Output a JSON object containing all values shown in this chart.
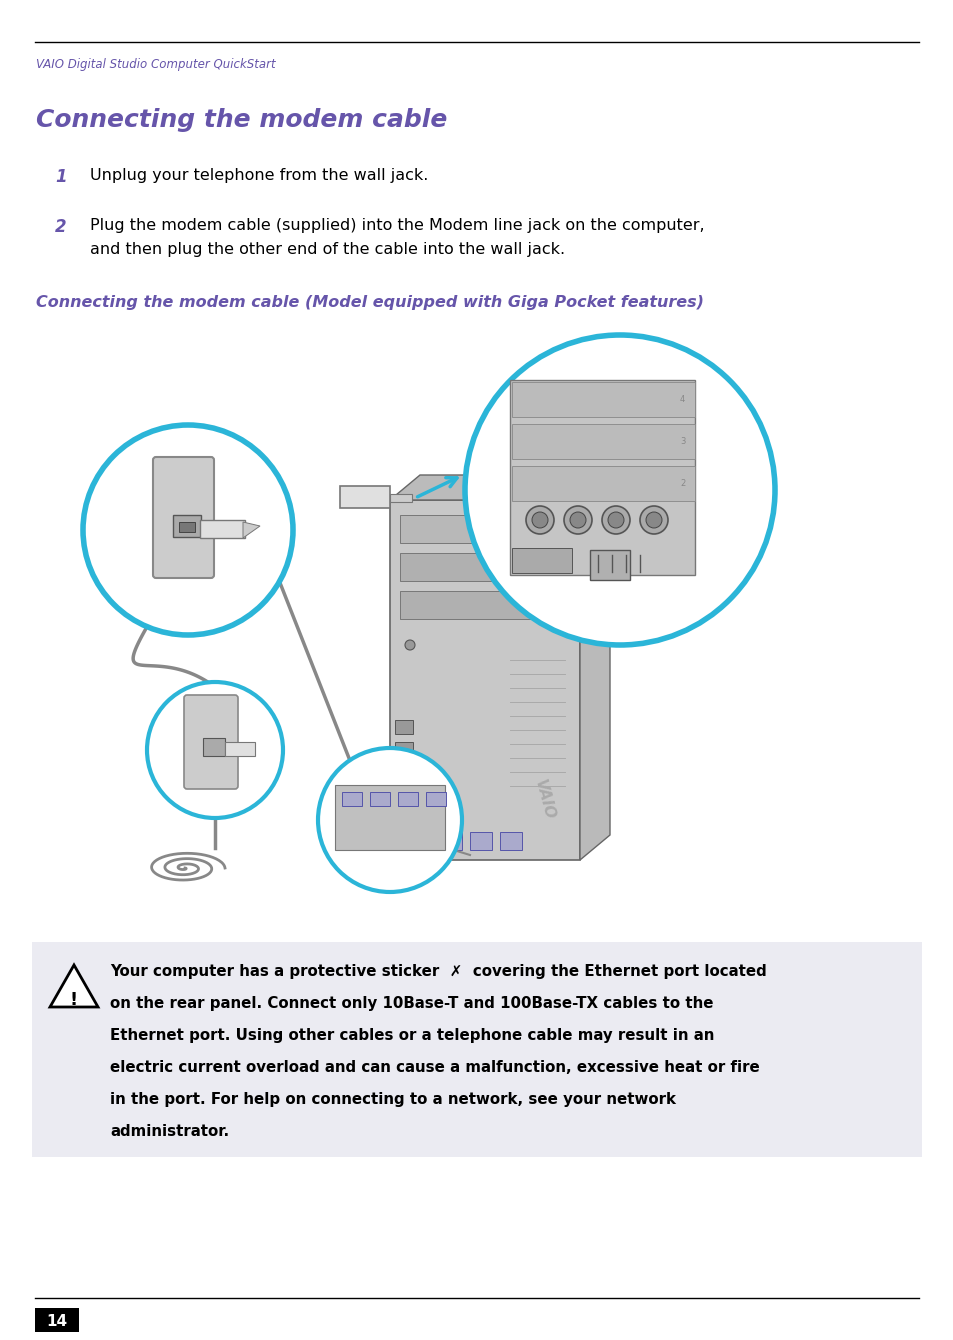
{
  "header_text": "VAIO Digital Studio Computer QuickStart",
  "header_color": "#6655AA",
  "title": "Connecting the modem cable",
  "title_color": "#6655AA",
  "step1_num": "1",
  "step1_text": "Unplug your telephone from the wall jack.",
  "step2_num": "2",
  "step2_line1": "Plug the modem cable (supplied) into the Modem line jack on the computer,",
  "step2_line2": "and then plug the other end of the cable into the wall jack.",
  "subtitle": "Connecting the modem cable (Model equipped with Giga Pocket features)",
  "subtitle_color": "#6655AA",
  "warning_bg": "#EBEBF2",
  "page_num": "14",
  "step_num_color": "#6655AA",
  "bg_color": "#FFFFFF",
  "cyan": "#2BB5D8",
  "tower_color": "#C8C8C8",
  "tower_dark": "#AAAAAA",
  "wall_color": "#CCCCCC"
}
